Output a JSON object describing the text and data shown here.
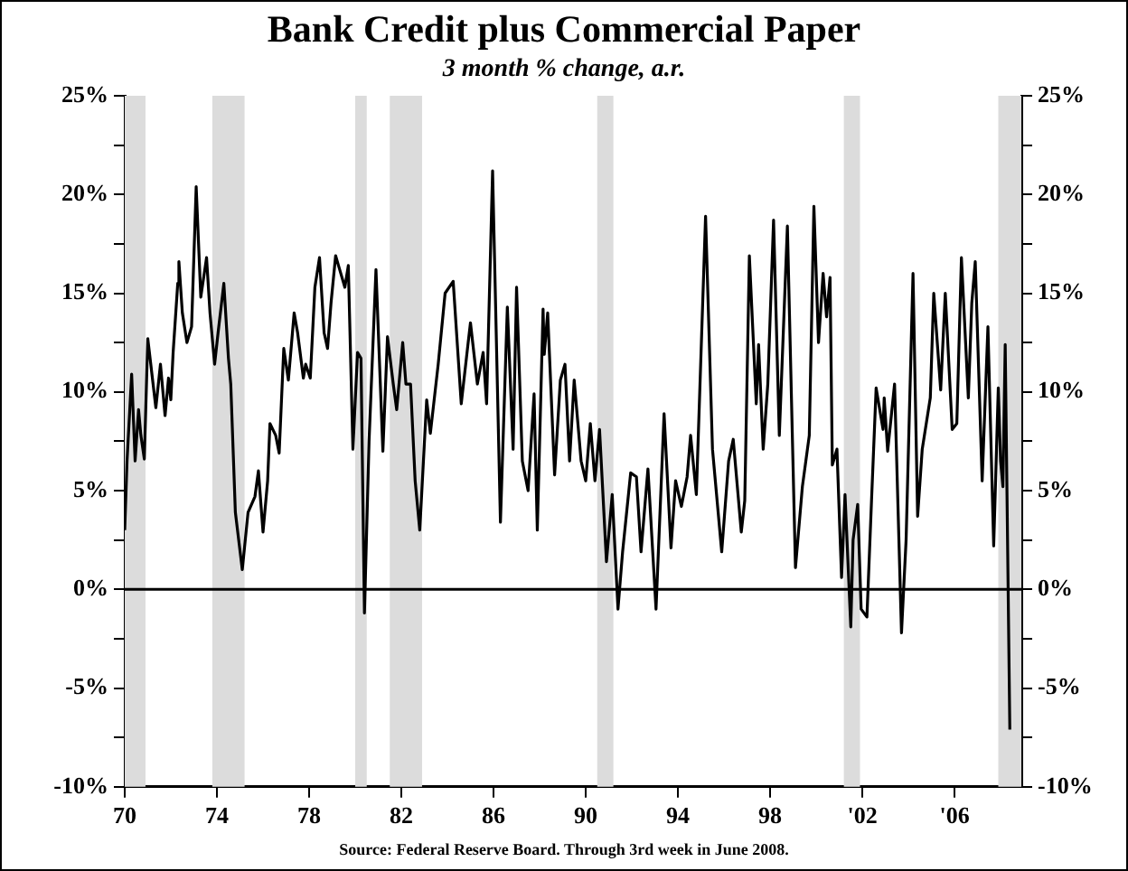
{
  "chart_data": {
    "type": "line",
    "title": "Bank Credit plus Commercial Paper",
    "subtitle": "3 month % change, a.r.",
    "annotations": [
      "Source: Federal Reserve Board. Through 3rd week in June 2008."
    ],
    "x": [
      1970.0,
      1970.1,
      1970.3,
      1970.45,
      1970.6,
      1970.7,
      1970.85,
      1971.0,
      1971.35,
      1971.55,
      1971.75,
      1971.9,
      1972.0,
      1972.1,
      1972.3,
      1972.35,
      1972.5,
      1972.7,
      1972.9,
      1973.1,
      1973.3,
      1973.55,
      1973.7,
      1973.9,
      1974.05,
      1974.3,
      1974.5,
      1974.6,
      1974.8,
      1975.1,
      1975.35,
      1975.65,
      1975.8,
      1976.0,
      1976.2,
      1976.3,
      1976.55,
      1976.7,
      1976.9,
      1977.1,
      1977.35,
      1977.5,
      1977.75,
      1977.85,
      1978.05,
      1978.25,
      1978.45,
      1978.65,
      1978.8,
      1978.95,
      1979.15,
      1979.3,
      1979.55,
      1979.7,
      1979.9,
      1980.1,
      1980.25,
      1980.4,
      1980.6,
      1980.9,
      1981.2,
      1981.4,
      1981.65,
      1981.8,
      1982.06,
      1982.2,
      1982.4,
      1982.6,
      1982.8,
      1983.1,
      1983.26,
      1983.6,
      1983.9,
      1984.25,
      1984.6,
      1984.9,
      1985.0,
      1985.3,
      1985.55,
      1985.7,
      1985.96,
      1986.3,
      1986.6,
      1986.85,
      1987.0,
      1987.25,
      1987.5,
      1987.76,
      1987.9,
      1988.15,
      1988.2,
      1988.35,
      1988.65,
      1988.9,
      1989.1,
      1989.3,
      1989.5,
      1989.8,
      1990.0,
      1990.2,
      1990.4,
      1990.6,
      1990.9,
      1991.15,
      1991.4,
      1991.6,
      1991.95,
      1992.2,
      1992.4,
      1992.7,
      1993.05,
      1993.4,
      1993.7,
      1993.9,
      1994.15,
      1994.4,
      1994.55,
      1994.8,
      1995.2,
      1995.5,
      1995.9,
      1996.2,
      1996.4,
      1996.75,
      1996.9,
      1997.1,
      1997.4,
      1997.5,
      1997.7,
      1997.9,
      1998.15,
      1998.4,
      1998.75,
      1999.1,
      1999.4,
      1999.7,
      1999.9,
      2000.1,
      2000.3,
      2000.45,
      2000.6,
      2000.7,
      2000.9,
      2001.1,
      2001.25,
      2001.5,
      2001.6,
      2001.8,
      2001.95,
      2002.2,
      2002.4,
      2002.6,
      2002.9,
      2002.95,
      2003.1,
      2003.4,
      2003.7,
      2003.9,
      2004.2,
      2004.4,
      2004.6,
      2004.95,
      2005.1,
      2005.4,
      2005.6,
      2005.9,
      2006.1,
      2006.3,
      2006.6,
      2006.75,
      2006.9,
      2007.2,
      2007.45,
      2007.7,
      2007.9,
      2008.0,
      2008.1,
      2008.2,
      2008.4
    ],
    "series": [
      {
        "color": "#000000",
        "values": [
          3.0,
          6.5,
          10.9,
          6.5,
          9.1,
          7.8,
          6.6,
          12.7,
          9.2,
          11.4,
          8.8,
          10.7,
          9.6,
          12.0,
          15.5,
          16.6,
          14.0,
          12.5,
          13.3,
          20.4,
          14.8,
          16.8,
          14.0,
          11.4,
          13.0,
          15.5,
          11.7,
          10.4,
          3.9,
          1.0,
          3.9,
          4.7,
          6.0,
          2.9,
          5.5,
          8.4,
          7.8,
          6.9,
          12.2,
          10.6,
          14.0,
          13.0,
          10.7,
          11.4,
          10.7,
          15.3,
          16.8,
          13.0,
          12.2,
          14.5,
          16.9,
          16.3,
          15.3,
          16.4,
          7.1,
          12.0,
          11.7,
          -1.2,
          7.5,
          16.2,
          7.0,
          12.8,
          10.4,
          9.1,
          12.5,
          10.4,
          10.4,
          5.5,
          3.0,
          9.6,
          7.9,
          11.4,
          15.0,
          15.6,
          9.4,
          12.5,
          13.5,
          10.4,
          12.0,
          9.4,
          21.2,
          3.4,
          14.3,
          7.1,
          15.3,
          6.5,
          5.0,
          9.9,
          3.0,
          14.2,
          11.9,
          14.0,
          5.8,
          10.6,
          11.4,
          6.5,
          10.6,
          6.5,
          5.5,
          8.4,
          5.5,
          8.1,
          1.4,
          4.8,
          -1.0,
          1.9,
          5.9,
          5.7,
          1.9,
          6.1,
          -1.0,
          8.9,
          2.1,
          5.5,
          4.2,
          5.7,
          7.8,
          4.8,
          18.9,
          7.1,
          1.9,
          6.5,
          7.6,
          2.9,
          4.5,
          16.9,
          9.4,
          12.4,
          7.1,
          10.4,
          18.7,
          7.8,
          18.4,
          1.1,
          5.2,
          7.8,
          19.4,
          12.5,
          16.0,
          13.8,
          15.8,
          6.3,
          7.1,
          0.6,
          4.8,
          -1.9,
          2.5,
          4.3,
          -1.0,
          -1.4,
          4.5,
          10.2,
          8.1,
          9.7,
          7.0,
          10.4,
          -2.2,
          2.5,
          16.0,
          3.7,
          7.1,
          9.7,
          15.0,
          10.1,
          15.0,
          8.1,
          8.4,
          16.8,
          9.7,
          14.5,
          16.6,
          5.5,
          13.3,
          2.2,
          10.2,
          6.5,
          5.2,
          12.4,
          -7.1
        ]
      }
    ],
    "xlim": [
      1970,
      2008.9
    ],
    "xticks": [
      {
        "value": 1970,
        "label": "70"
      },
      {
        "value": 1974,
        "label": "74"
      },
      {
        "value": 1978,
        "label": "78"
      },
      {
        "value": 1982,
        "label": "82"
      },
      {
        "value": 1986,
        "label": "86"
      },
      {
        "value": 1990,
        "label": "90"
      },
      {
        "value": 1994,
        "label": "94"
      },
      {
        "value": 1998,
        "label": "98"
      },
      {
        "value": 2002,
        "label": "'02"
      },
      {
        "value": 2006,
        "label": "'06"
      }
    ],
    "ylim": [
      -10,
      25
    ],
    "yticks": [
      {
        "value": -10,
        "label": "-10%"
      },
      {
        "value": -7.5,
        "label": null
      },
      {
        "value": -5,
        "label": "-5%"
      },
      {
        "value": -2.5,
        "label": null
      },
      {
        "value": 0,
        "label": "0%"
      },
      {
        "value": 2.5,
        "label": null
      },
      {
        "value": 5,
        "label": "5%"
      },
      {
        "value": 7.5,
        "label": null
      },
      {
        "value": 10,
        "label": "10%"
      },
      {
        "value": 12.5,
        "label": null
      },
      {
        "value": 15,
        "label": "15%"
      },
      {
        "value": 17.5,
        "label": null
      },
      {
        "value": 20,
        "label": "20%"
      },
      {
        "value": 22.5,
        "label": null
      },
      {
        "value": 25,
        "label": "25%"
      }
    ],
    "y2lim": [
      -10,
      25
    ],
    "y2ticks": [
      {
        "value": -10,
        "label": "-10%"
      },
      {
        "value": -7.5,
        "label": null
      },
      {
        "value": -5,
        "label": "-5%"
      },
      {
        "value": -2.5,
        "label": null
      },
      {
        "value": 0,
        "label": "0%"
      },
      {
        "value": 2.5,
        "label": null
      },
      {
        "value": 5,
        "label": "5%"
      },
      {
        "value": 7.5,
        "label": null
      },
      {
        "value": 10,
        "label": "10%"
      },
      {
        "value": 12.5,
        "label": null
      },
      {
        "value": 15,
        "label": "15%"
      },
      {
        "value": 17.5,
        "label": null
      },
      {
        "value": 20,
        "label": "20%"
      },
      {
        "value": 22.5,
        "label": null
      },
      {
        "value": 25,
        "label": "25%"
      }
    ],
    "ref_lines": [
      {
        "axis": "y",
        "value": 0,
        "color": "#000000"
      }
    ],
    "bands": [
      {
        "axis": "x",
        "from": 1970.0,
        "to": 1970.9,
        "color": "#dcdcdc"
      },
      {
        "axis": "x",
        "from": 1973.8,
        "to": 1975.2,
        "color": "#dcdcdc"
      },
      {
        "axis": "x",
        "from": 1980.0,
        "to": 1980.5,
        "color": "#dcdcdc"
      },
      {
        "axis": "x",
        "from": 1981.5,
        "to": 1982.9,
        "color": "#dcdcdc"
      },
      {
        "axis": "x",
        "from": 1990.5,
        "to": 1991.2,
        "color": "#dcdcdc"
      },
      {
        "axis": "x",
        "from": 2001.2,
        "to": 2001.9,
        "color": "#dcdcdc"
      },
      {
        "axis": "x",
        "from": 2007.9,
        "to": 2008.9,
        "color": "#dcdcdc"
      }
    ],
    "grid": false,
    "legend": false,
    "marker": "none",
    "line_style": "solid"
  }
}
